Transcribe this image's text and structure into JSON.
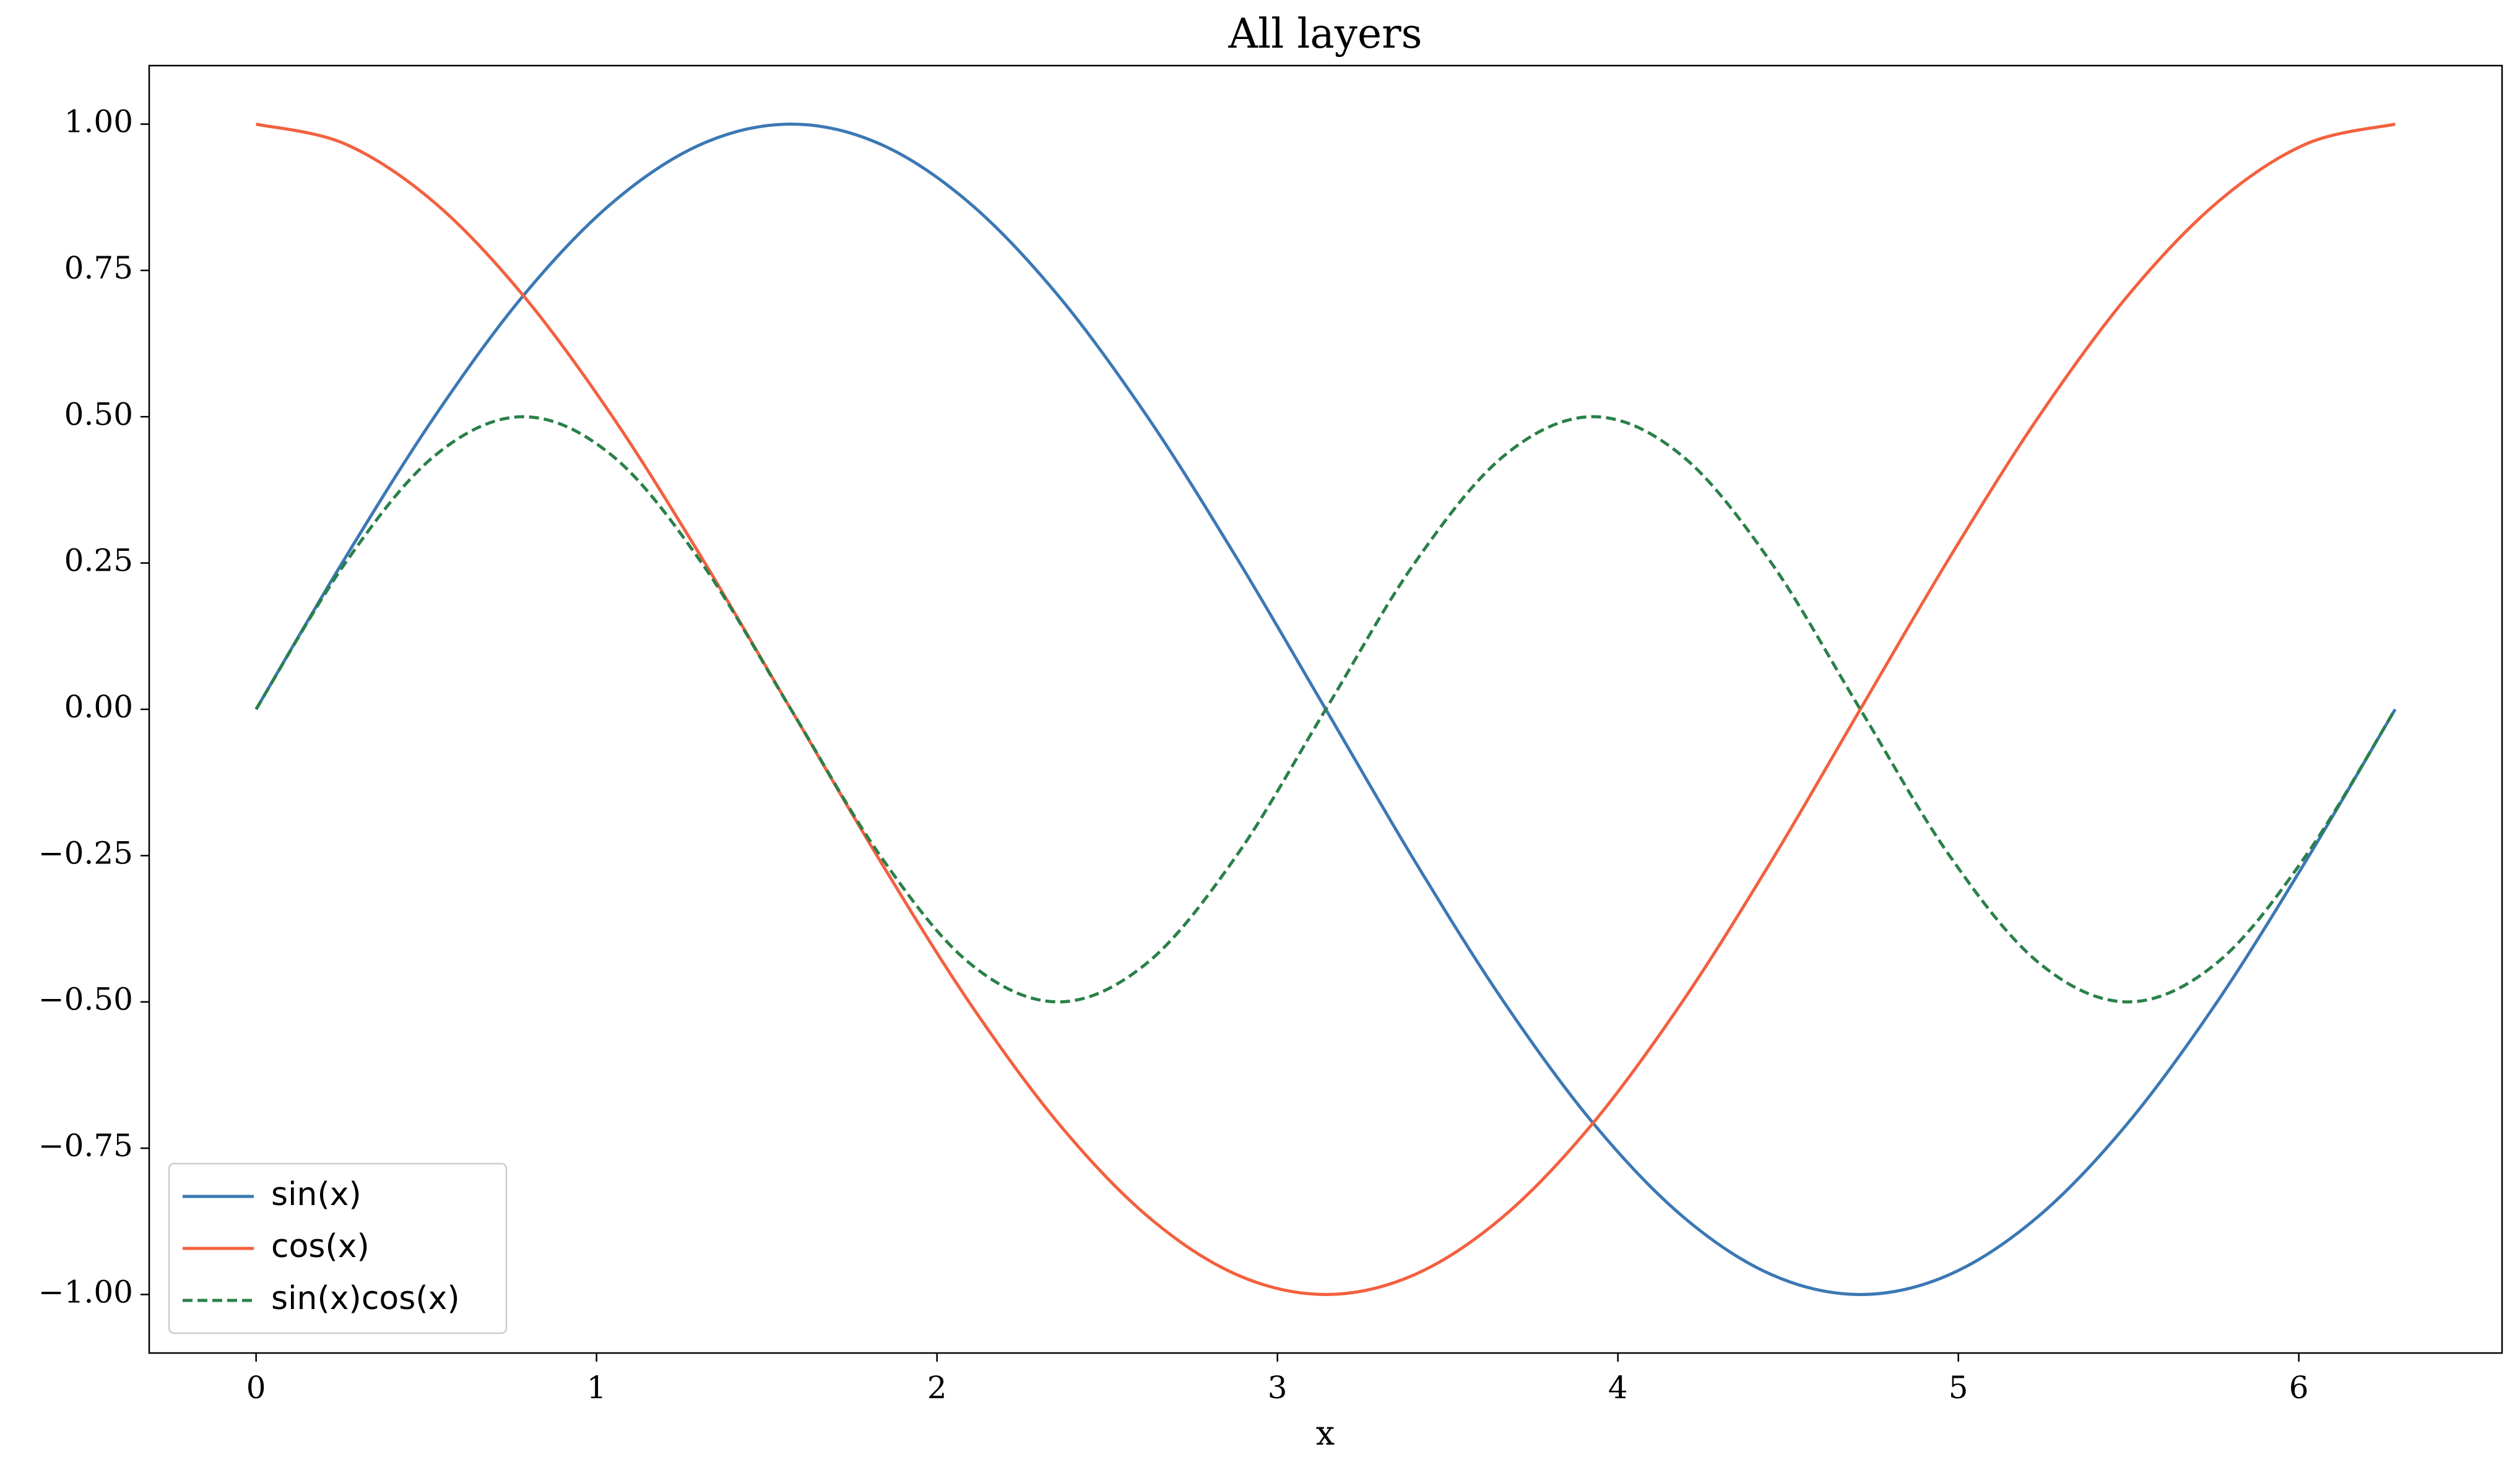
{
  "chart_data": {
    "type": "line",
    "title": "All layers",
    "x_label": "x",
    "x": [
      0,
      0.262,
      0.524,
      0.785,
      1.047,
      1.309,
      1.571,
      1.833,
      2.094,
      2.356,
      2.618,
      2.88,
      3.142,
      3.403,
      3.665,
      3.927,
      4.189,
      4.451,
      4.712,
      4.974,
      5.236,
      5.498,
      5.76,
      6.021,
      6.283
    ],
    "series": [
      {
        "name": "sin(x)",
        "color": "#3b78b4",
        "dash": false,
        "values": [
          0,
          0.259,
          0.5,
          0.707,
          0.866,
          0.966,
          1,
          0.966,
          0.866,
          0.707,
          0.5,
          0.259,
          0,
          -0.259,
          -0.5,
          -0.707,
          -0.866,
          -0.966,
          -1,
          -0.966,
          -0.866,
          -0.707,
          -0.5,
          -0.259,
          0
        ]
      },
      {
        "name": "cos(x)",
        "color": "#f3603f",
        "dash": false,
        "values": [
          1,
          0.966,
          0.866,
          0.707,
          0.5,
          0.259,
          0,
          -0.259,
          -0.5,
          -0.707,
          -0.866,
          -0.966,
          -1,
          -0.966,
          -0.866,
          -0.707,
          -0.5,
          -0.259,
          0,
          0.259,
          0.5,
          0.707,
          0.866,
          0.966,
          1
        ]
      },
      {
        "name": "sin(x)cos(x)",
        "color": "#2a8049",
        "dash": true,
        "values": [
          0,
          0.25,
          0.433,
          0.5,
          0.433,
          0.25,
          0,
          -0.25,
          -0.433,
          -0.5,
          -0.433,
          -0.25,
          0,
          0.25,
          0.433,
          0.5,
          0.433,
          0.25,
          0,
          -0.25,
          -0.433,
          -0.5,
          -0.433,
          -0.25,
          0
        ]
      }
    ],
    "xlim": [
      -0.314,
      6.597
    ],
    "xticks": [
      0,
      1,
      2,
      3,
      4,
      5,
      6
    ],
    "ylim": [
      -1.1,
      1.1
    ],
    "yticks": [
      {
        "value": -1,
        "label": "−1.00"
      },
      {
        "value": -0.75,
        "label": "−0.75"
      },
      {
        "value": -0.5,
        "label": "−0.50"
      },
      {
        "value": -0.25,
        "label": "−0.25"
      },
      {
        "value": 0,
        "label": "0.00"
      },
      {
        "value": 0.25,
        "label": "0.25"
      },
      {
        "value": 0.5,
        "label": "0.50"
      },
      {
        "value": 0.75,
        "label": "0.75"
      },
      {
        "value": 1,
        "label": "1.00"
      }
    ],
    "grid": false,
    "legend": "lower left"
  }
}
